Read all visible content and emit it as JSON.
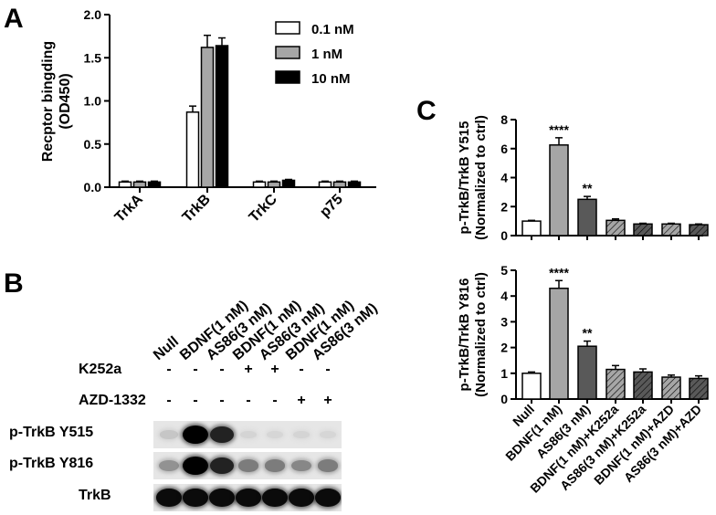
{
  "figure": {
    "panel_a": "A",
    "panel_b": "B",
    "panel_c": "C"
  },
  "chart_data": [
    {
      "type": "bar",
      "panel": "A",
      "categories": [
        "TrkA",
        "TrkB",
        "TrkC",
        "p75"
      ],
      "series": [
        {
          "name": "0.1 nM",
          "values": [
            0.06,
            0.87,
            0.06,
            0.06
          ],
          "errors": [
            0.01,
            0.07,
            0.01,
            0.01
          ],
          "color": "#ffffff"
        },
        {
          "name": "1 nM",
          "values": [
            0.06,
            1.62,
            0.06,
            0.06
          ],
          "errors": [
            0.01,
            0.14,
            0.01,
            0.01
          ],
          "color": "#a6a6a6"
        },
        {
          "name": "10 nM",
          "values": [
            0.06,
            1.64,
            0.08,
            0.06
          ],
          "errors": [
            0.01,
            0.09,
            0.01,
            0.01
          ],
          "color": "#000000"
        }
      ],
      "ylabel": "Recptor bingding (OD450)",
      "ylabel_lines": [
        "Recptor bingding",
        "(OD450)"
      ],
      "ylim": [
        0,
        2.0
      ],
      "yticks": [
        "0.0",
        "0.5",
        "1.0",
        "1.5",
        "2.0"
      ],
      "legend": "top-right",
      "grid": false
    },
    {
      "type": "bar",
      "panel": "C",
      "categories": [
        "Null",
        "BDNF(1 nM)",
        "AS86(3 nM)",
        "BDNF(1 nM)+K252a",
        "AS86(3 nM)+K252a",
        "BDNF(1 nM)+AZD",
        "AS86(3 nM)+AZD"
      ],
      "values": [
        1.0,
        6.25,
        2.5,
        1.05,
        0.8,
        0.8,
        0.75
      ],
      "errors": [
        0.05,
        0.5,
        0.2,
        0.1,
        0.05,
        0.05,
        0.05
      ],
      "significance": [
        "",
        "****",
        "**",
        "",
        "",
        "",
        ""
      ],
      "ylabel": "p-TrkB/TrkB Y515 (Normalized to ctrl)",
      "ylabel_lines": [
        "p-TrkB/TrkB Y515",
        "(Normalized to ctrl)"
      ],
      "ylim": [
        0,
        8
      ],
      "yticks": [
        "0",
        "2",
        "4",
        "6",
        "8"
      ],
      "grid": false
    },
    {
      "type": "bar",
      "panel": "C",
      "categories": [
        "Null",
        "BDNF(1 nM)",
        "AS86(3 nM)",
        "BDNF(1 nM)+K252a",
        "AS86(3 nM)+K252a",
        "BDNF(1 nM)+AZD",
        "AS86(3 nM)+AZD"
      ],
      "values": [
        1.0,
        4.3,
        2.05,
        1.15,
        1.05,
        0.85,
        0.8
      ],
      "errors": [
        0.05,
        0.3,
        0.2,
        0.15,
        0.12,
        0.08,
        0.1
      ],
      "significance": [
        "",
        "****",
        "**",
        "",
        "",
        "",
        ""
      ],
      "ylabel": "p-TrkB/TrkB Y816 (Normalized to ctrl)",
      "ylabel_lines": [
        "p-TrkB/TrkB Y816",
        "(Normalized to ctrl)"
      ],
      "ylim": [
        0,
        5
      ],
      "yticks": [
        "0",
        "1",
        "2",
        "3",
        "4",
        "5"
      ],
      "grid": false
    }
  ],
  "panel_c_bar_styles": [
    {
      "fill": "#ffffff",
      "hatch": false
    },
    {
      "fill": "#a6a6a6",
      "hatch": false
    },
    {
      "fill": "#595959",
      "hatch": false
    },
    {
      "fill": "#a6a6a6",
      "hatch": true
    },
    {
      "fill": "#595959",
      "hatch": true
    },
    {
      "fill": "#a6a6a6",
      "hatch": true
    },
    {
      "fill": "#595959",
      "hatch": true
    }
  ],
  "western_blot": {
    "lanes": [
      "Null",
      "BDNF(1 nM)",
      "AS86(3 nM)",
      "BDNF(1 nM)",
      "AS86(3 nM)",
      "BDNF(1 nM)",
      "AS86(3 nM)"
    ],
    "treatments": [
      {
        "label": "K252a",
        "signs": [
          "-",
          "-",
          "-",
          "+",
          "+",
          "-",
          "-"
        ]
      },
      {
        "label": "AZD-1332",
        "signs": [
          "-",
          "-",
          "-",
          "-",
          "-",
          "+",
          "+"
        ]
      }
    ],
    "rows": [
      {
        "label": "p-TrkB Y515",
        "band_intensity": [
          0.12,
          1.0,
          0.85,
          0.06,
          0.05,
          0.06,
          0.05
        ]
      },
      {
        "label": "p-TrkB Y816",
        "band_intensity": [
          0.35,
          1.0,
          0.85,
          0.45,
          0.45,
          0.4,
          0.45
        ]
      },
      {
        "label": "TrkB",
        "band_intensity": [
          0.95,
          0.95,
          0.95,
          0.95,
          0.95,
          0.95,
          0.95
        ]
      }
    ]
  }
}
